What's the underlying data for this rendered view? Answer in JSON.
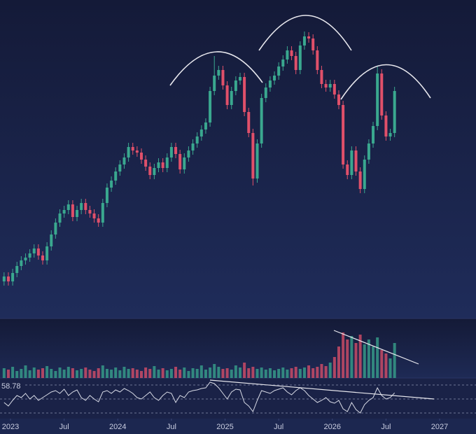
{
  "chart_data": {
    "type": "candlestick",
    "up_color": "#3aa88f",
    "down_color": "#e0506a",
    "x": [
      2022.94,
      2022.98,
      2023.02,
      2023.06,
      2023.1,
      2023.14,
      2023.18,
      2023.22,
      2023.26,
      2023.3,
      2023.34,
      2023.38,
      2023.42,
      2023.46,
      2023.5,
      2023.54,
      2023.58,
      2023.62,
      2023.66,
      2023.7,
      2023.74,
      2023.78,
      2023.82,
      2023.86,
      2023.9,
      2023.94,
      2023.98,
      2024.02,
      2024.06,
      2024.1,
      2024.14,
      2024.18,
      2024.22,
      2024.26,
      2024.3,
      2024.34,
      2024.38,
      2024.42,
      2024.46,
      2024.5,
      2024.54,
      2024.58,
      2024.62,
      2024.66,
      2024.7,
      2024.74,
      2024.78,
      2024.82,
      2024.86,
      2024.9,
      2024.94,
      2024.98,
      2025.02,
      2025.06,
      2025.1,
      2025.14,
      2025.18,
      2025.22,
      2025.26,
      2025.3,
      2025.34,
      2025.38,
      2025.42,
      2025.46,
      2025.5,
      2025.54,
      2025.58,
      2025.62,
      2025.66,
      2025.7,
      2025.74,
      2025.78,
      2025.82,
      2025.86,
      2025.9,
      2025.94,
      2025.98,
      2026.02,
      2026.06,
      2026.1,
      2026.14,
      2026.18,
      2026.22,
      2026.26,
      2026.3,
      2026.34,
      2026.38,
      2026.42,
      2026.46,
      2026.5,
      2026.54,
      2026.58
    ],
    "open": [
      58,
      65,
      58,
      70,
      80,
      88,
      92,
      98,
      105,
      95,
      88,
      108,
      125,
      142,
      155,
      160,
      168,
      150,
      160,
      170,
      160,
      155,
      148,
      142,
      170,
      192,
      202,
      215,
      225,
      235,
      250,
      245,
      242,
      232,
      222,
      210,
      220,
      228,
      220,
      235,
      250,
      240,
      218,
      235,
      245,
      255,
      265,
      275,
      285,
      330,
      352,
      360,
      338,
      310,
      330,
      345,
      350,
      300,
      270,
      205,
      255,
      320,
      335,
      345,
      352,
      365,
      375,
      388,
      380,
      360,
      395,
      408,
      405,
      388,
      360,
      340,
      335,
      340,
      325,
      310,
      225,
      210,
      245,
      215,
      190,
      232,
      255,
      280,
      355,
      295,
      265,
      270
    ],
    "high": [
      71,
      71,
      76,
      86,
      94,
      98,
      104,
      111,
      111,
      101,
      114,
      131,
      148,
      161,
      166,
      174,
      174,
      166,
      176,
      176,
      166,
      161,
      154,
      176,
      198,
      208,
      221,
      231,
      241,
      256,
      256,
      251,
      248,
      238,
      228,
      226,
      234,
      234,
      241,
      256,
      256,
      246,
      241,
      251,
      261,
      271,
      281,
      291,
      336,
      380,
      366,
      366,
      344,
      336,
      351,
      356,
      356,
      306,
      276,
      261,
      326,
      341,
      351,
      358,
      371,
      381,
      394,
      394,
      386,
      401,
      415,
      414,
      411,
      394,
      366,
      346,
      346,
      346,
      331,
      316,
      231,
      251,
      251,
      221,
      238,
      261,
      286,
      365,
      361,
      301,
      276,
      336
    ],
    "low": [
      52,
      52,
      52,
      64,
      74,
      82,
      86,
      92,
      89,
      82,
      82,
      102,
      119,
      136,
      149,
      154,
      144,
      144,
      154,
      154,
      149,
      142,
      136,
      136,
      164,
      186,
      196,
      209,
      219,
      229,
      239,
      236,
      226,
      216,
      204,
      204,
      214,
      214,
      214,
      229,
      234,
      212,
      212,
      229,
      239,
      249,
      259,
      269,
      279,
      324,
      346,
      332,
      304,
      304,
      324,
      339,
      294,
      264,
      195,
      199,
      249,
      314,
      329,
      339,
      346,
      359,
      369,
      374,
      354,
      354,
      389,
      399,
      382,
      354,
      334,
      329,
      329,
      319,
      304,
      219,
      204,
      204,
      209,
      184,
      184,
      226,
      249,
      274,
      289,
      259,
      259,
      264
    ],
    "close": [
      65,
      58,
      70,
      80,
      88,
      92,
      98,
      105,
      95,
      88,
      108,
      125,
      142,
      155,
      160,
      168,
      150,
      160,
      170,
      160,
      155,
      148,
      142,
      170,
      192,
      202,
      215,
      225,
      235,
      250,
      245,
      242,
      232,
      222,
      210,
      220,
      228,
      220,
      235,
      250,
      240,
      218,
      235,
      245,
      255,
      265,
      275,
      285,
      330,
      352,
      360,
      338,
      310,
      330,
      345,
      350,
      300,
      270,
      205,
      255,
      320,
      335,
      345,
      352,
      365,
      375,
      388,
      380,
      360,
      395,
      408,
      405,
      388,
      360,
      340,
      335,
      340,
      325,
      310,
      225,
      210,
      245,
      215,
      190,
      232,
      255,
      280,
      355,
      295,
      265,
      270,
      330
    ],
    "ylim": [
      0,
      460
    ],
    "xlim": [
      2022.902,
      2027.339
    ],
    "xticks": [
      {
        "value": 2023,
        "label": "2023"
      },
      {
        "value": 2023.5,
        "label": "Jul"
      },
      {
        "value": 2024,
        "label": "2024"
      },
      {
        "value": 2024.5,
        "label": "Jul"
      },
      {
        "value": 2025,
        "label": "2025"
      },
      {
        "value": 2025.5,
        "label": "Jul"
      },
      {
        "value": 2026,
        "label": "2026"
      },
      {
        "value": 2026.5,
        "label": "Jul"
      },
      {
        "value": 2027,
        "label": "2027"
      }
    ],
    "volume": {
      "ylim": [
        0,
        80
      ],
      "values": [
        14,
        12,
        16,
        10,
        13,
        18,
        11,
        15,
        12,
        14,
        17,
        13,
        10,
        15,
        12,
        16,
        14,
        11,
        13,
        15,
        12,
        10,
        14,
        18,
        13,
        12,
        15,
        11,
        16,
        13,
        14,
        12,
        10,
        15,
        13,
        17,
        12,
        14,
        11,
        13,
        16,
        12,
        15,
        10,
        14,
        13,
        18,
        12,
        15,
        20,
        16,
        13,
        14,
        12,
        18,
        15,
        22,
        14,
        16,
        13,
        15,
        12,
        14,
        11,
        13,
        15,
        12,
        14,
        16,
        13,
        15,
        18,
        14,
        16,
        20,
        17,
        22,
        30,
        45,
        65,
        55,
        60,
        50,
        62,
        48,
        55,
        45,
        58,
        40,
        35,
        28,
        50
      ]
    },
    "rsi": {
      "ylim": [
        22,
        78
      ],
      "levels": [
        30,
        50,
        70
      ],
      "color": "#d8dbe6",
      "values": [
        45,
        40,
        48,
        55,
        52,
        58,
        50,
        55,
        48,
        52,
        56,
        60,
        62,
        58,
        64,
        55,
        60,
        63,
        52,
        48,
        55,
        50,
        46,
        60,
        62,
        58,
        63,
        60,
        65,
        62,
        58,
        52,
        50,
        55,
        60,
        52,
        48,
        55,
        60,
        58,
        45,
        55,
        52,
        60,
        62,
        63,
        65,
        66,
        74,
        72,
        66,
        58,
        50,
        60,
        64,
        63,
        45,
        40,
        32,
        48,
        62,
        60,
        58,
        62,
        64,
        66,
        60,
        56,
        62,
        66,
        62,
        55,
        50,
        45,
        48,
        52,
        46,
        44,
        48,
        36,
        32,
        45,
        35,
        30,
        42,
        48,
        52,
        66,
        55,
        50,
        52,
        58.78
      ]
    }
  }
}
